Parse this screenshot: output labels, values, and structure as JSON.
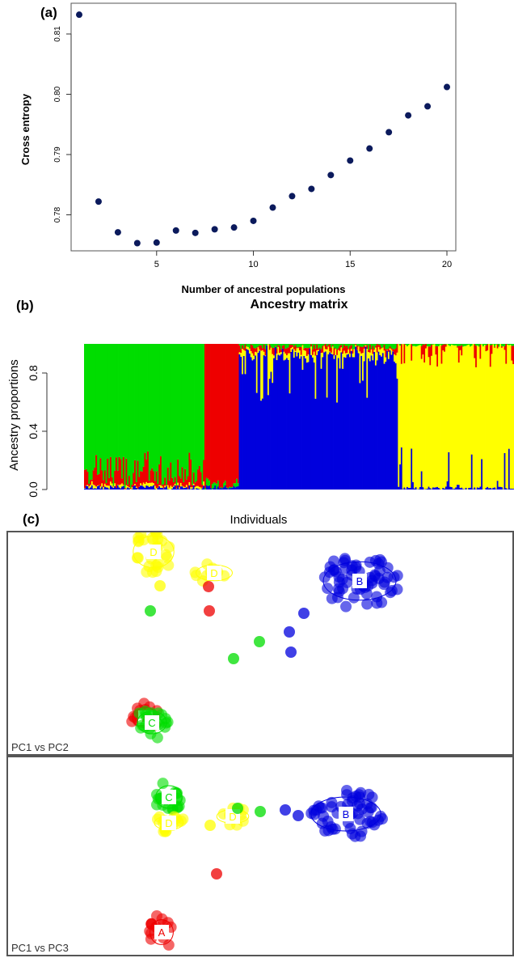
{
  "chart_data": [
    {
      "panel": "(a)",
      "type": "scatter",
      "title": "",
      "xlabel": "Number of ancestral populations",
      "ylabel": "Cross entropy",
      "xlim": [
        1,
        20
      ],
      "ylim": [
        0.775,
        0.812
      ],
      "xticks": [
        5,
        10,
        15,
        20
      ],
      "yticks": [
        0.78,
        0.79,
        0.8,
        0.81
      ],
      "point_color": "#0b1a5c",
      "series": [
        {
          "x": [
            1,
            2,
            3,
            4,
            5,
            6,
            7,
            8,
            9,
            10,
            11,
            12,
            13,
            14,
            15,
            16,
            17,
            18,
            19,
            20
          ],
          "y": [
            0.8132,
            0.7822,
            0.7771,
            0.7753,
            0.7754,
            0.7774,
            0.777,
            0.7776,
            0.7779,
            0.779,
            0.7812,
            0.7831,
            0.7843,
            0.7866,
            0.789,
            0.791,
            0.7937,
            0.7965,
            0.798,
            0.8012
          ]
        }
      ],
      "grid": false
    },
    {
      "panel": "(b)",
      "type": "bar",
      "stacked": true,
      "title": "Ancestry matrix",
      "xlabel": "",
      "ylabel": "Ancestry proportions",
      "ylim": [
        0,
        1
      ],
      "yticks": [
        "0.0",
        "0.4",
        "0.8"
      ],
      "cluster_colors": [
        "#00dd00",
        "#ee0000",
        "#0000dd",
        "#ffff00"
      ],
      "blocks": [
        {
          "color": "#00dd00",
          "share_of_individuals": 0.28
        },
        {
          "color": "#ee0000",
          "share_of_individuals": 0.08
        },
        {
          "color": "#0000dd",
          "share_of_individuals": 0.37
        },
        {
          "color": "#ffff00",
          "share_of_individuals": 0.27
        }
      ]
    },
    {
      "panel": "(c)",
      "type": "scatter",
      "title": "Individuals",
      "subplots": [
        {
          "label": "PC1 vs PC2",
          "groups": [
            {
              "name": "A",
              "color": "#ee0000"
            },
            {
              "name": "B",
              "color": "#0000dd"
            },
            {
              "name": "C",
              "color": "#00dd00"
            },
            {
              "name": "D",
              "color": "#ffff00"
            }
          ]
        },
        {
          "label": "PC1 vs PC3",
          "groups": [
            {
              "name": "A",
              "color": "#ee0000"
            },
            {
              "name": "B",
              "color": "#0000dd"
            },
            {
              "name": "C",
              "color": "#00dd00"
            },
            {
              "name": "D",
              "color": "#ffff00"
            }
          ]
        }
      ]
    }
  ],
  "labels": {
    "a": "(a)",
    "b": "(b)",
    "c": "(c)"
  }
}
